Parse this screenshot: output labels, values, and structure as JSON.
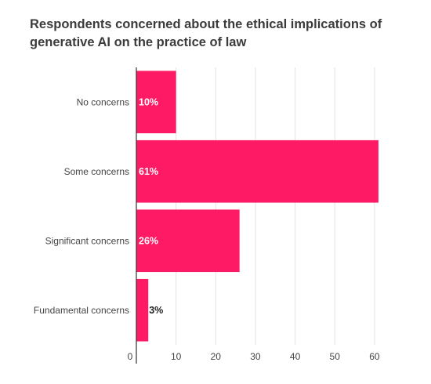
{
  "chart_data": {
    "type": "bar",
    "orientation": "horizontal",
    "title": "Respondents concerned about the ethical implications of generative AI on the practice of law",
    "xlabel": "",
    "ylabel": "",
    "categories": [
      "No concerns",
      "Some concerns",
      "Significant concerns",
      "Fundamental concerns"
    ],
    "values": [
      10,
      61,
      26,
      3
    ],
    "data_labels": [
      "10%",
      "61%",
      "26%",
      "3%"
    ],
    "xlim": [
      0,
      62
    ],
    "x_ticks": [
      0,
      10,
      20,
      30,
      40,
      50,
      60
    ],
    "grid": true,
    "legend": "none",
    "colors": {
      "bar": "#ff1a66",
      "grid": "#e3e3e3",
      "axis": "#333333",
      "label_inside": "#ffffff",
      "label_outside": "#222222"
    }
  }
}
